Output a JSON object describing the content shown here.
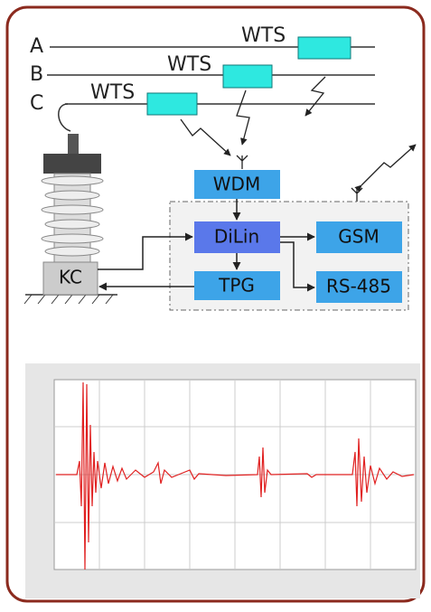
{
  "phases": [
    "A",
    "B",
    "C"
  ],
  "sensors": [
    "WTS",
    "WTS",
    "WTS"
  ],
  "nodes": {
    "wdm": "WDM",
    "dilin": "DiLin",
    "gsm": "GSM",
    "tpg": "TPG",
    "rs485": "RS-485",
    "kc": "KC"
  }
}
